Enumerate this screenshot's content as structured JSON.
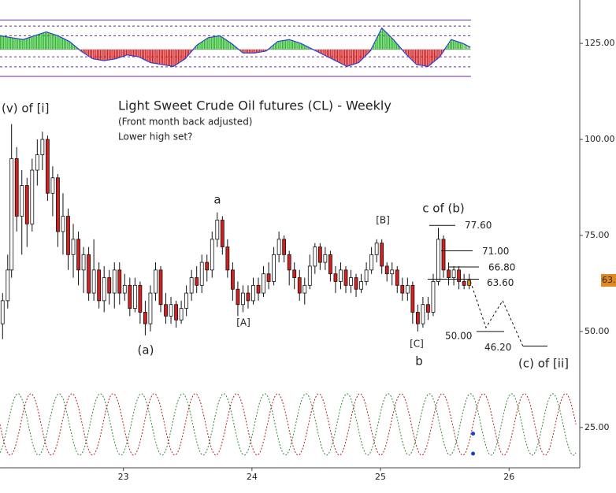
{
  "chart_data": {
    "type": "candlestick",
    "title": "Light Sweet Crude Oil futures (CL) - Weekly",
    "subtitle": "(Front month back adjusted)",
    "note": "Lower high set?",
    "xlim": [
      22.04,
      26.55
    ],
    "xticks": [
      23,
      24,
      25,
      26
    ],
    "ylim": [
      14.5,
      136.3
    ],
    "yticks": [
      {
        "value": 25,
        "label": "25.00"
      },
      {
        "value": 50,
        "label": "50.00"
      },
      {
        "value": 75,
        "label": "75.00"
      },
      {
        "value": 100,
        "label": "100.00"
      },
      {
        "value": 125,
        "label": "125.00"
      }
    ],
    "up_color": "#ffffff",
    "down_color": "#d42020",
    "last_color": "#e08a1e",
    "x": [
      22.06,
      22.1,
      22.13,
      22.17,
      22.21,
      22.25,
      22.29,
      22.33,
      22.37,
      22.41,
      22.45,
      22.49,
      22.53,
      22.57,
      22.61,
      22.65,
      22.69,
      22.73,
      22.77,
      22.81,
      22.85,
      22.89,
      22.93,
      22.97,
      23.01,
      23.05,
      23.09,
      23.13,
      23.17,
      23.21,
      23.25,
      23.29,
      23.33,
      23.37,
      23.41,
      23.45,
      23.49,
      23.53,
      23.57,
      23.61,
      23.65,
      23.69,
      23.73,
      23.77,
      23.81,
      23.85,
      23.89,
      23.93,
      23.97,
      24.01,
      24.05,
      24.09,
      24.13,
      24.17,
      24.21,
      24.25,
      24.29,
      24.33,
      24.37,
      24.41,
      24.45,
      24.49,
      24.53,
      24.57,
      24.61,
      24.65,
      24.69,
      24.73,
      24.77,
      24.81,
      24.85,
      24.89,
      24.93,
      24.97,
      25.01,
      25.05,
      25.09,
      25.13,
      25.17,
      25.21,
      25.25,
      25.29,
      25.33,
      25.37,
      25.41,
      25.45,
      25.49,
      25.53,
      25.57,
      25.61,
      25.65,
      25.69
    ],
    "open": [
      52,
      58,
      66,
      95,
      80,
      88,
      78,
      92,
      96,
      100,
      86,
      90,
      76,
      80,
      70,
      74,
      66,
      70,
      60,
      66,
      58,
      64,
      60,
      66,
      60,
      62,
      56,
      62,
      55,
      52,
      60,
      66,
      57,
      54,
      57,
      53,
      56,
      60,
      64,
      62,
      68,
      66,
      74,
      79,
      72,
      66,
      61,
      57,
      60,
      58,
      62,
      60,
      65,
      63,
      70,
      74,
      70,
      66,
      64,
      60,
      62,
      67,
      72,
      68,
      70,
      65,
      63,
      66,
      62,
      64,
      61,
      63,
      66,
      70,
      73,
      67,
      65,
      66,
      62,
      60,
      62,
      55,
      52,
      57,
      55,
      63,
      74,
      66,
      64,
      66,
      63,
      62
    ],
    "high": [
      60,
      70,
      104,
      98,
      92,
      90,
      95,
      100,
      102,
      101,
      93,
      91,
      86,
      82,
      78,
      76,
      72,
      72,
      74,
      68,
      67,
      66,
      68,
      68,
      65,
      64,
      64,
      63,
      58,
      62,
      68,
      67,
      60,
      59,
      58,
      58,
      62,
      66,
      67,
      70,
      70,
      76,
      81,
      80,
      74,
      68,
      63,
      62,
      62,
      64,
      64,
      67,
      68,
      72,
      76,
      75,
      71,
      68,
      66,
      64,
      70,
      73,
      73,
      72,
      71,
      67,
      68,
      67,
      66,
      65,
      65,
      68,
      72,
      74,
      74,
      68,
      68,
      67,
      64,
      64,
      63,
      57,
      59,
      59,
      65,
      77,
      75,
      68,
      67,
      67,
      65,
      65
    ],
    "low": [
      48,
      56,
      64,
      76,
      70,
      72,
      76,
      88,
      92,
      84,
      80,
      72,
      70,
      66,
      64,
      62,
      60,
      58,
      58,
      56,
      55,
      57,
      56,
      57,
      58,
      54,
      55,
      52,
      49,
      50,
      58,
      55,
      52,
      52,
      51,
      52,
      54,
      58,
      60,
      60,
      63,
      64,
      72,
      70,
      64,
      58,
      54,
      55,
      56,
      57,
      58,
      59,
      61,
      62,
      68,
      68,
      62,
      61,
      58,
      57,
      61,
      65,
      66,
      66,
      63,
      60,
      61,
      60,
      60,
      59,
      60,
      62,
      65,
      68,
      65,
      63,
      62,
      60,
      58,
      58,
      52,
      50,
      51,
      53,
      54,
      62,
      64,
      62,
      62,
      61,
      61,
      61
    ],
    "close": [
      58,
      66,
      95,
      80,
      88,
      78,
      92,
      96,
      100,
      86,
      90,
      76,
      80,
      70,
      74,
      66,
      70,
      60,
      66,
      58,
      64,
      60,
      66,
      60,
      62,
      56,
      62,
      55,
      52,
      60,
      66,
      57,
      54,
      57,
      53,
      56,
      60,
      64,
      62,
      68,
      66,
      74,
      79,
      72,
      66,
      61,
      57,
      60,
      58,
      62,
      60,
      65,
      63,
      70,
      74,
      70,
      66,
      64,
      60,
      62,
      67,
      72,
      68,
      70,
      65,
      63,
      66,
      62,
      64,
      61,
      63,
      66,
      70,
      73,
      67,
      65,
      66,
      62,
      60,
      62,
      55,
      52,
      57,
      55,
      63,
      74,
      66,
      64,
      66,
      63,
      62,
      63.31
    ],
    "oscillator": {
      "up_color": "#2db82d",
      "down_color": "#d42020",
      "line_color": "#2a3fd6",
      "baseline": 123.4,
      "bands": [
        131.1,
        129.5,
        127.0,
        121.5,
        118.9,
        116.4
      ],
      "band_color": "#6a2c91",
      "x": [
        22.04,
        22.13,
        22.22,
        22.31,
        22.4,
        22.49,
        22.58,
        22.67,
        22.76,
        22.85,
        22.94,
        23.03,
        23.12,
        23.21,
        23.3,
        23.39,
        23.48,
        23.57,
        23.66,
        23.75,
        23.84,
        23.93,
        24.02,
        24.11,
        24.2,
        24.29,
        24.38,
        24.47,
        24.56,
        24.65,
        24.74,
        24.83,
        24.92,
        25.01,
        25.1,
        25.19,
        25.28,
        25.37,
        25.46,
        25.55,
        25.64,
        25.7
      ],
      "values": [
        127,
        126.5,
        126,
        127,
        128,
        127,
        125.5,
        123,
        121,
        120.5,
        121,
        122,
        121.5,
        120,
        119.5,
        119,
        121,
        124.5,
        126.5,
        127,
        125,
        122.5,
        122.5,
        123,
        125.5,
        126,
        125,
        123.5,
        122,
        120.5,
        119,
        120,
        123,
        129,
        126,
        122.5,
        119.5,
        119,
        121.5,
        126,
        125,
        124
      ]
    },
    "cycles": [
      {
        "color": "#2e8b2e",
        "center": 25.8,
        "amplitude": 8,
        "period": 0.32,
        "phase": 22.1
      },
      {
        "color": "#b02020",
        "center": 25.8,
        "amplitude": 8,
        "period": 0.32,
        "phase": 22.2
      }
    ],
    "cycle_dots": {
      "color": "#1a3fd0",
      "x": [
        25.72,
        25.72
      ],
      "y": [
        23.4,
        18.2
      ]
    },
    "projection": {
      "x": [
        25.7,
        25.82,
        25.95,
        26.11
      ],
      "y": [
        63,
        51,
        58,
        46
      ]
    },
    "levels": [
      {
        "value": 77.6,
        "label": "77.60"
      },
      {
        "value": 71.0,
        "label": "71.00"
      },
      {
        "value": 66.8,
        "label": "66.80"
      },
      {
        "value": 63.6,
        "label": "63.60"
      },
      {
        "value": 50.0,
        "label": "50.00"
      },
      {
        "value": 46.2,
        "label": "46.20"
      }
    ],
    "wave_labels": [
      "(v) of [i]",
      "a",
      "(a)",
      "[A]",
      "[B]",
      "c of (b)",
      "[C]",
      "b",
      "(c) of [ii]"
    ]
  }
}
